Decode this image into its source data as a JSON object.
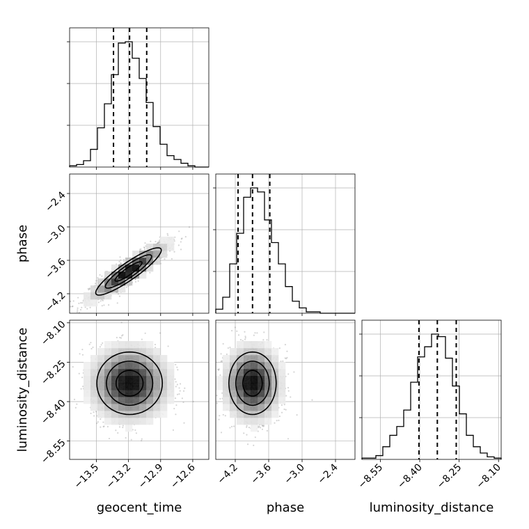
{
  "chart_data": {
    "type": "corner",
    "parameters": [
      {
        "name": "geocent_time",
        "xlabel": "geocent_time",
        "range": [
          -13.75,
          -12.45
        ],
        "ticks": [
          "−13.5",
          "−13.2",
          "−12.9",
          "−12.6"
        ],
        "tick_values": [
          -13.5,
          -13.2,
          -12.9,
          -12.6
        ],
        "quantiles": [
          -13.34,
          -13.19,
          -13.03
        ],
        "hist_counts": [
          1,
          2,
          5,
          14,
          31,
          50,
          73,
          98,
          99,
          86,
          70,
          51,
          32,
          18,
          9,
          6,
          3,
          1,
          0,
          0
        ]
      },
      {
        "name": "phase",
        "xlabel": "phase",
        "ylabel": "phase",
        "range": [
          -4.55,
          -2.05
        ],
        "ticks": [
          "−4.2",
          "−3.6",
          "−3.0",
          "−2.4"
        ],
        "tick_values": [
          -4.2,
          -3.6,
          -3.0,
          -2.4
        ],
        "quantiles": [
          -4.15,
          -3.89,
          -3.58
        ],
        "hist_counts": [
          3,
          12,
          37,
          60,
          87,
          94,
          91,
          70,
          53,
          37,
          20,
          9,
          4,
          1,
          1,
          0,
          0,
          0,
          0,
          0
        ]
      },
      {
        "name": "luminosity_distance",
        "xlabel": "luminosity_distance",
        "ylabel": "luminosity_distance",
        "range": [
          -8.62,
          -8.09
        ],
        "ticks": [
          "−8.55",
          "−8.40",
          "−8.25",
          "−8.10"
        ],
        "tick_values": [
          -8.55,
          -8.4,
          -8.25,
          -8.1
        ],
        "quantiles": [
          -8.403,
          -8.333,
          -8.261
        ],
        "hist_counts": [
          1,
          1,
          3,
          10,
          19,
          26,
          39,
          61,
          81,
          89,
          99,
          97,
          80,
          58,
          36,
          19,
          10,
          5,
          2,
          1
        ]
      }
    ],
    "density_2d": [
      {
        "x": "geocent_time",
        "y": "phase",
        "center": [
          -13.2,
          -3.8
        ],
        "sd": [
          0.18,
          0.25
        ],
        "correlation": 0.9
      },
      {
        "x": "geocent_time",
        "y": "luminosity_distance",
        "center": [
          -13.19,
          -8.33
        ],
        "sd": [
          0.18,
          0.07
        ],
        "correlation": 0.0
      },
      {
        "x": "phase",
        "y": "luminosity_distance",
        "center": [
          -3.89,
          -8.33
        ],
        "sd": [
          0.25,
          0.07
        ],
        "correlation": 0.0
      }
    ],
    "quantile_levels": [
      0.16,
      0.5,
      0.84
    ],
    "grid": true,
    "colors": {
      "line": "#000000",
      "scatter": "#888888",
      "grid": "#b0b0b0"
    }
  }
}
